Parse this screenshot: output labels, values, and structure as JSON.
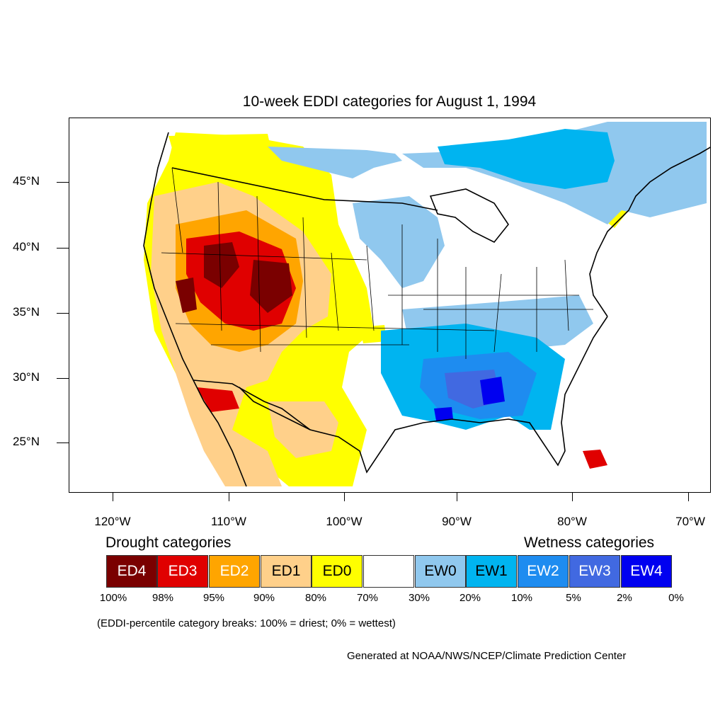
{
  "title": "10-week EDDI categories for August 1, 1994",
  "axes": {
    "lat_labels": [
      "45°N",
      "40°N",
      "35°N",
      "30°N",
      "25°N"
    ],
    "lon_labels": [
      "120°W",
      "110°W",
      "100°W",
      "90°W",
      "80°W",
      "70°W"
    ]
  },
  "legend": {
    "drought_heading": "Drought categories",
    "wetness_heading": "Wetness categories",
    "categories": [
      {
        "label": "ED4",
        "color": "#7a0000",
        "text_color": "#ffffff"
      },
      {
        "label": "ED3",
        "color": "#e00000",
        "text_color": "#ffffff"
      },
      {
        "label": "ED2",
        "color": "#ffa500",
        "text_color": "#ffffff"
      },
      {
        "label": "ED1",
        "color": "#ffd08a",
        "text_color": "#000000"
      },
      {
        "label": "ED0",
        "color": "#ffff00",
        "text_color": "#000000"
      },
      {
        "label": "",
        "color": "#ffffff",
        "text_color": "#000000"
      },
      {
        "label": "EW0",
        "color": "#90c8ee",
        "text_color": "#000000"
      },
      {
        "label": "EW1",
        "color": "#00b4f0",
        "text_color": "#000000"
      },
      {
        "label": "EW2",
        "color": "#1e8cf0",
        "text_color": "#ffffff"
      },
      {
        "label": "EW3",
        "color": "#4169e1",
        "text_color": "#ffffff"
      },
      {
        "label": "EW4",
        "color": "#0000f0",
        "text_color": "#ffffff"
      }
    ],
    "breaks": [
      "100%",
      "98%",
      "95%",
      "90%",
      "80%",
      "70%",
      "30%",
      "20%",
      "10%",
      "5%",
      "2%",
      "0%"
    ]
  },
  "note": "(EDDI-percentile category breaks: 100% = driest; 0% = wettest)",
  "credit": "Generated at NOAA/NWS/NCEP/Climate Prediction Center"
}
